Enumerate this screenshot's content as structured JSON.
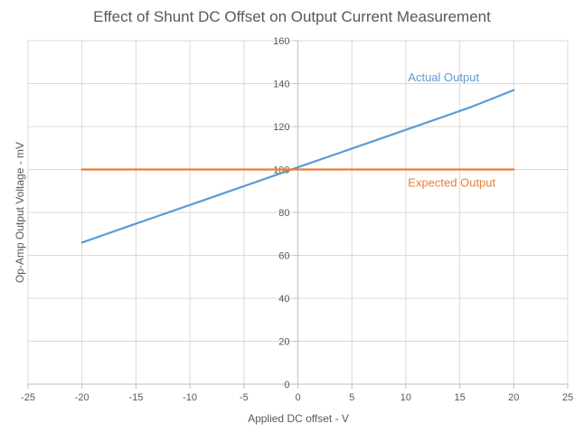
{
  "chart_data": {
    "type": "line",
    "title": "Effect of Shunt DC Offset on Output Current Measurement",
    "xlabel": "Applied DC offset - V",
    "ylabel": "Op-Amp Output Voltage - mV",
    "xlim": [
      -25,
      25
    ],
    "ylim": [
      0,
      160
    ],
    "xticks": [
      -25,
      -20,
      -15,
      -10,
      -5,
      0,
      5,
      10,
      15,
      20,
      25
    ],
    "yticks": [
      0,
      20,
      40,
      60,
      80,
      100,
      120,
      140,
      160
    ],
    "grid": true,
    "legend": "none",
    "series": [
      {
        "name": "Actual Output",
        "color": "#5B9BD5",
        "x": [
          -20,
          -16,
          -12,
          -8,
          -4,
          0,
          4,
          8,
          12,
          16,
          20
        ],
        "y": [
          66,
          73,
          80,
          87,
          94,
          101,
          108,
          115,
          122,
          129,
          137
        ]
      },
      {
        "name": "Expected Output",
        "color": "#ED7D31",
        "x": [
          -20,
          20
        ],
        "y": [
          100,
          100
        ]
      }
    ]
  }
}
